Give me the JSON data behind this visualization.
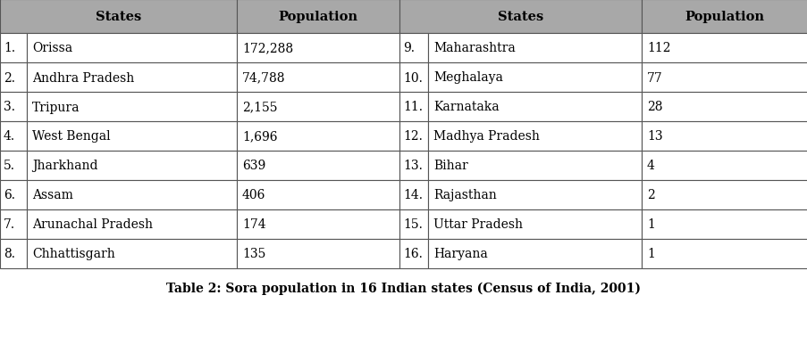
{
  "title": "Table 2: Sora population in 16 Indian states (Census of India, 2001)",
  "header": [
    "States",
    "Population",
    "States",
    "Population"
  ],
  "rows_left": [
    [
      "1.",
      "Orissa",
      "172,288"
    ],
    [
      "2.",
      "Andhra Pradesh",
      "74,788"
    ],
    [
      "3.",
      "Tripura",
      "2,155"
    ],
    [
      "4.",
      "West Bengal",
      "1,696"
    ],
    [
      "5.",
      "Jharkhand",
      "639"
    ],
    [
      "6.",
      "Assam",
      "406"
    ],
    [
      "7.",
      "Arunachal Pradesh",
      "174"
    ],
    [
      "8.",
      "Chhattisgarh",
      "135"
    ]
  ],
  "rows_right": [
    [
      "9.",
      "Maharashtra",
      "112"
    ],
    [
      "10.",
      "Meghalaya",
      "77"
    ],
    [
      "11.",
      "Karnataka",
      "28"
    ],
    [
      "12.",
      "Madhya Pradesh",
      "13"
    ],
    [
      "13.",
      "Bihar",
      "4"
    ],
    [
      "14.",
      "Rajasthan",
      "2"
    ],
    [
      "15.",
      "Uttar Pradesh",
      "1"
    ],
    [
      "16.",
      "Haryana",
      "1"
    ]
  ],
  "header_bg": "#a8a8a8",
  "border_color": "#555555",
  "text_color": "#000000",
  "title_fontsize": 10,
  "header_fontsize": 10.5,
  "cell_fontsize": 10
}
